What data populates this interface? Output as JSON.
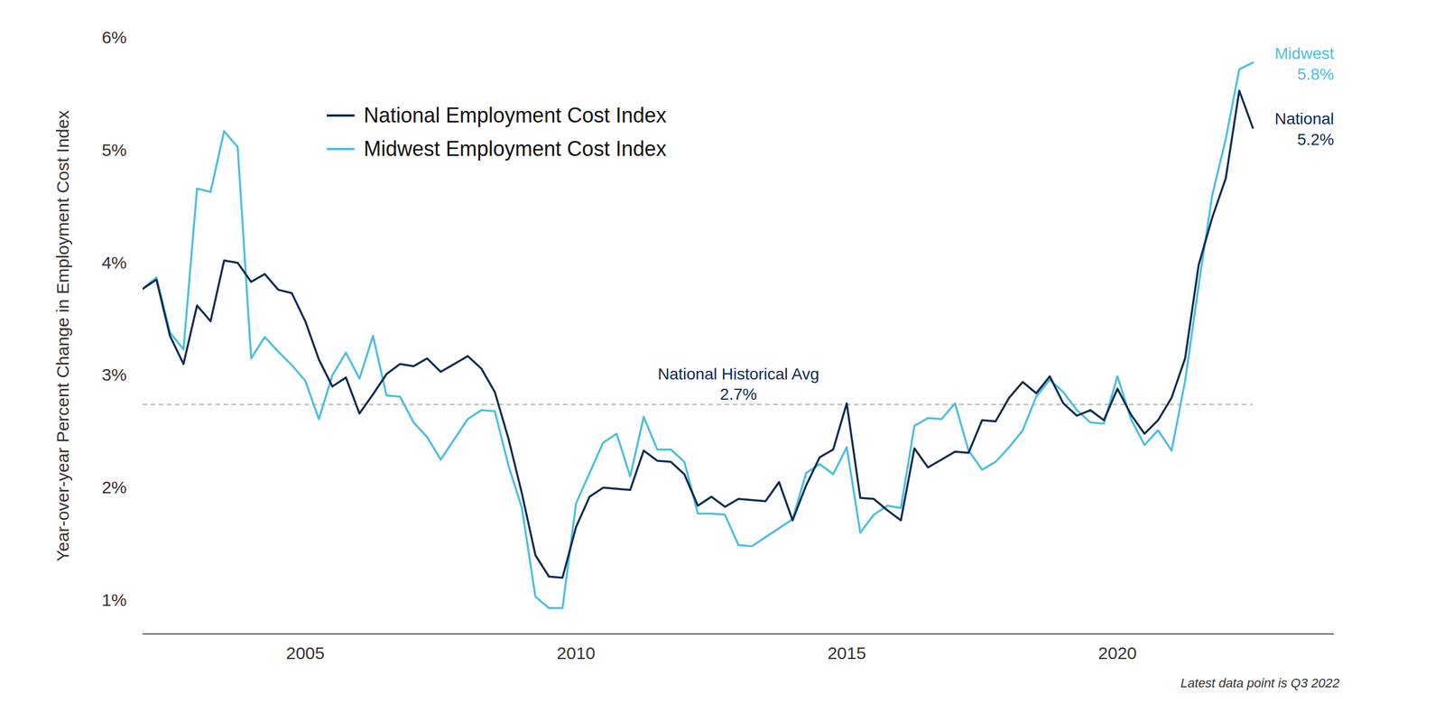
{
  "chart_data": {
    "type": "line",
    "y_label": "Year-over-year Percent Change in Employment Cost Index",
    "caption": "Latest data point is Q3 2022",
    "legend": "top-left",
    "grid": false,
    "x": [
      2002,
      2002.25,
      2002.5,
      2002.75,
      2003,
      2003.25,
      2003.5,
      2003.75,
      2004,
      2004.25,
      2004.5,
      2004.75,
      2005,
      2005.25,
      2005.5,
      2005.75,
      2006,
      2006.25,
      2006.5,
      2006.75,
      2007,
      2007.25,
      2007.5,
      2007.75,
      2008,
      2008.25,
      2008.5,
      2008.75,
      2009,
      2009.25,
      2009.5,
      2009.75,
      2010,
      2010.25,
      2010.5,
      2010.75,
      2011,
      2011.25,
      2011.5,
      2011.75,
      2012,
      2012.25,
      2012.5,
      2012.75,
      2013,
      2013.25,
      2013.5,
      2013.75,
      2014,
      2014.25,
      2014.5,
      2014.75,
      2015,
      2015.25,
      2015.5,
      2015.75,
      2016,
      2016.25,
      2016.5,
      2016.75,
      2017,
      2017.25,
      2017.5,
      2017.75,
      2018,
      2018.25,
      2018.5,
      2018.75,
      2019,
      2019.25,
      2019.5,
      2019.75,
      2020,
      2020.25,
      2020.5,
      2020.75,
      2021,
      2021.25,
      2021.5,
      2021.75,
      2022,
      2022.25,
      2022.5
    ],
    "xlim": [
      2002,
      2024
    ],
    "xticks": [
      2005,
      2010,
      2015,
      2020
    ],
    "ylim": [
      0.7,
      6
    ],
    "yticks": [
      {
        "value": 1,
        "label": "1%"
      },
      {
        "value": 2,
        "label": "2%"
      },
      {
        "value": 3,
        "label": "3%"
      },
      {
        "value": 4,
        "label": "4%"
      },
      {
        "value": 5,
        "label": "5%"
      },
      {
        "value": 6,
        "label": "6%"
      }
    ],
    "series": [
      {
        "name": "Midwest Employment Cost Index",
        "label": "Midwest",
        "end_label": "5.8%",
        "color": "#4bbfe0",
        "marker": "none",
        "line_style": "solid",
        "values": [
          3.77,
          3.87,
          3.38,
          3.23,
          4.66,
          4.63,
          5.17,
          5.03,
          3.15,
          3.34,
          3.21,
          3.09,
          2.95,
          2.61,
          3.0,
          3.2,
          2.97,
          3.35,
          2.82,
          2.81,
          2.58,
          2.45,
          2.25,
          2.43,
          2.61,
          2.69,
          2.68,
          2.2,
          1.82,
          1.03,
          0.93,
          0.93,
          1.86,
          2.13,
          2.4,
          2.48,
          2.1,
          2.63,
          2.34,
          2.34,
          2.23,
          1.77,
          1.77,
          1.76,
          1.49,
          1.48,
          1.56,
          1.64,
          1.72,
          2.13,
          2.21,
          2.12,
          2.36,
          1.6,
          1.76,
          1.84,
          1.82,
          2.55,
          2.62,
          2.61,
          2.75,
          2.33,
          2.16,
          2.23,
          2.36,
          2.51,
          2.81,
          2.96,
          2.85,
          2.69,
          2.58,
          2.57,
          2.99,
          2.61,
          2.38,
          2.51,
          2.33,
          2.95,
          3.8,
          4.6,
          5.1,
          5.72,
          5.78
        ]
      },
      {
        "name": "National Employment Cost Index",
        "label": "National",
        "end_label": "5.2%",
        "color": "#0d2b52",
        "marker": "none",
        "line_style": "solid",
        "values": [
          3.77,
          3.85,
          3.35,
          3.1,
          3.62,
          3.48,
          4.02,
          4.0,
          3.83,
          3.9,
          3.76,
          3.73,
          3.48,
          3.14,
          2.9,
          2.98,
          2.66,
          2.83,
          3.01,
          3.1,
          3.08,
          3.15,
          3.03,
          3.1,
          3.17,
          3.06,
          2.85,
          2.44,
          1.95,
          1.4,
          1.21,
          1.2,
          1.65,
          1.92,
          2.0,
          1.99,
          1.98,
          2.33,
          2.24,
          2.23,
          2.12,
          1.84,
          1.92,
          1.83,
          1.9,
          1.89,
          1.88,
          2.05,
          1.71,
          2.02,
          2.27,
          2.34,
          2.75,
          1.91,
          1.9,
          1.8,
          1.71,
          2.35,
          2.18,
          2.25,
          2.32,
          2.31,
          2.6,
          2.59,
          2.8,
          2.94,
          2.84,
          2.99,
          2.75,
          2.64,
          2.69,
          2.6,
          2.88,
          2.65,
          2.48,
          2.6,
          2.8,
          3.15,
          3.98,
          4.4,
          4.75,
          5.53,
          5.2
        ]
      }
    ],
    "reference_line": {
      "value": 2.74,
      "label": "National Historical Avg",
      "value_label": "2.7%",
      "color": "#0d2b52",
      "line_style": "dashed"
    }
  }
}
